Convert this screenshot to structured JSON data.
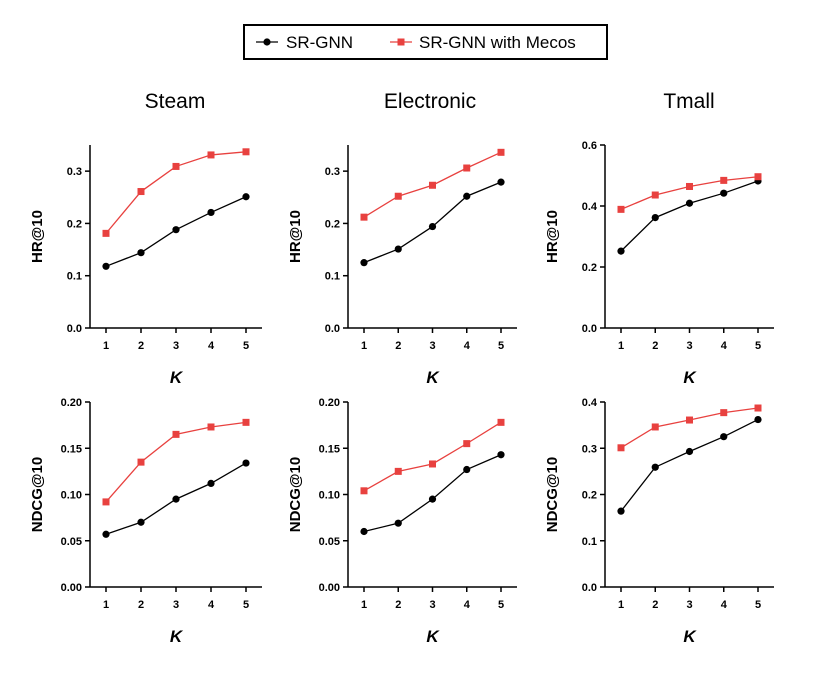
{
  "legend": {
    "series": [
      {
        "name": "SR-GNN",
        "color": "#000000",
        "marker": "circle"
      },
      {
        "name": "SR-GNN with Mecos",
        "color": "#e8413f",
        "marker": "square"
      }
    ]
  },
  "columns": [
    "Steam",
    "Electronic",
    "Tmall"
  ],
  "chart_data": [
    {
      "type": "line",
      "dataset": "Steam",
      "metric": "HR@10",
      "ylabel": "HR@10",
      "xlabel": "K",
      "x": [
        1,
        2,
        3,
        4,
        5
      ],
      "ylim": [
        0,
        0.35
      ],
      "yticks": [
        0.0,
        0.1,
        0.2,
        0.3
      ],
      "ytick_labels": [
        "0.0",
        "0.1",
        "0.2",
        "0.3"
      ],
      "series": [
        {
          "name": "SR-GNN",
          "values": [
            0.118,
            0.144,
            0.188,
            0.221,
            0.251
          ]
        },
        {
          "name": "SR-GNN with Mecos",
          "values": [
            0.181,
            0.261,
            0.309,
            0.331,
            0.337
          ]
        }
      ]
    },
    {
      "type": "line",
      "dataset": "Electronic",
      "metric": "HR@10",
      "ylabel": "HR@10",
      "xlabel": "K",
      "x": [
        1,
        2,
        3,
        4,
        5
      ],
      "ylim": [
        0,
        0.35
      ],
      "yticks": [
        0.0,
        0.1,
        0.2,
        0.3
      ],
      "ytick_labels": [
        "0.0",
        "0.1",
        "0.2",
        "0.3"
      ],
      "series": [
        {
          "name": "SR-GNN",
          "values": [
            0.125,
            0.151,
            0.194,
            0.252,
            0.279
          ]
        },
        {
          "name": "SR-GNN with Mecos",
          "values": [
            0.212,
            0.252,
            0.273,
            0.306,
            0.336
          ]
        }
      ]
    },
    {
      "type": "line",
      "dataset": "Tmall",
      "metric": "HR@10",
      "ylabel": "HR@10",
      "xlabel": "K",
      "x": [
        1,
        2,
        3,
        4,
        5
      ],
      "ylim": [
        0,
        0.6
      ],
      "yticks": [
        0.0,
        0.2,
        0.4,
        0.6
      ],
      "ytick_labels": [
        "0.0",
        "0.2",
        "0.4",
        "0.6"
      ],
      "series": [
        {
          "name": "SR-GNN",
          "values": [
            0.252,
            0.362,
            0.409,
            0.442,
            0.482
          ]
        },
        {
          "name": "SR-GNN with Mecos",
          "values": [
            0.389,
            0.436,
            0.464,
            0.484,
            0.496
          ]
        }
      ]
    },
    {
      "type": "line",
      "dataset": "Steam",
      "metric": "NDCG@10",
      "ylabel": "NDCG@10",
      "xlabel": "K",
      "x": [
        1,
        2,
        3,
        4,
        5
      ],
      "ylim": [
        0,
        0.2
      ],
      "yticks": [
        0.0,
        0.05,
        0.1,
        0.15,
        0.2
      ],
      "ytick_labels": [
        "0.00",
        "0.05",
        "0.10",
        "0.15",
        "0.20"
      ],
      "series": [
        {
          "name": "SR-GNN",
          "values": [
            0.057,
            0.07,
            0.095,
            0.112,
            0.134
          ]
        },
        {
          "name": "SR-GNN with Mecos",
          "values": [
            0.092,
            0.135,
            0.165,
            0.173,
            0.178
          ]
        }
      ]
    },
    {
      "type": "line",
      "dataset": "Electronic",
      "metric": "NDCG@10",
      "ylabel": "NDCG@10",
      "xlabel": "K",
      "x": [
        1,
        2,
        3,
        4,
        5
      ],
      "ylim": [
        0,
        0.2
      ],
      "yticks": [
        0.0,
        0.05,
        0.1,
        0.15,
        0.2
      ],
      "ytick_labels": [
        "0.00",
        "0.05",
        "0.10",
        "0.15",
        "0.20"
      ],
      "series": [
        {
          "name": "SR-GNN",
          "values": [
            0.06,
            0.069,
            0.095,
            0.127,
            0.143
          ]
        },
        {
          "name": "SR-GNN with Mecos",
          "values": [
            0.104,
            0.125,
            0.133,
            0.155,
            0.178
          ]
        }
      ]
    },
    {
      "type": "line",
      "dataset": "Tmall",
      "metric": "NDCG@10",
      "ylabel": "NDCG@10",
      "xlabel": "K",
      "x": [
        1,
        2,
        3,
        4,
        5
      ],
      "ylim": [
        0,
        0.4
      ],
      "yticks": [
        0.0,
        0.1,
        0.2,
        0.3,
        0.4
      ],
      "ytick_labels": [
        "0.0",
        "0.1",
        "0.2",
        "0.3",
        "0.4"
      ],
      "series": [
        {
          "name": "SR-GNN",
          "values": [
            0.164,
            0.259,
            0.293,
            0.325,
            0.362
          ]
        },
        {
          "name": "SR-GNN with Mecos",
          "values": [
            0.301,
            0.346,
            0.361,
            0.377,
            0.387
          ]
        }
      ]
    }
  ]
}
